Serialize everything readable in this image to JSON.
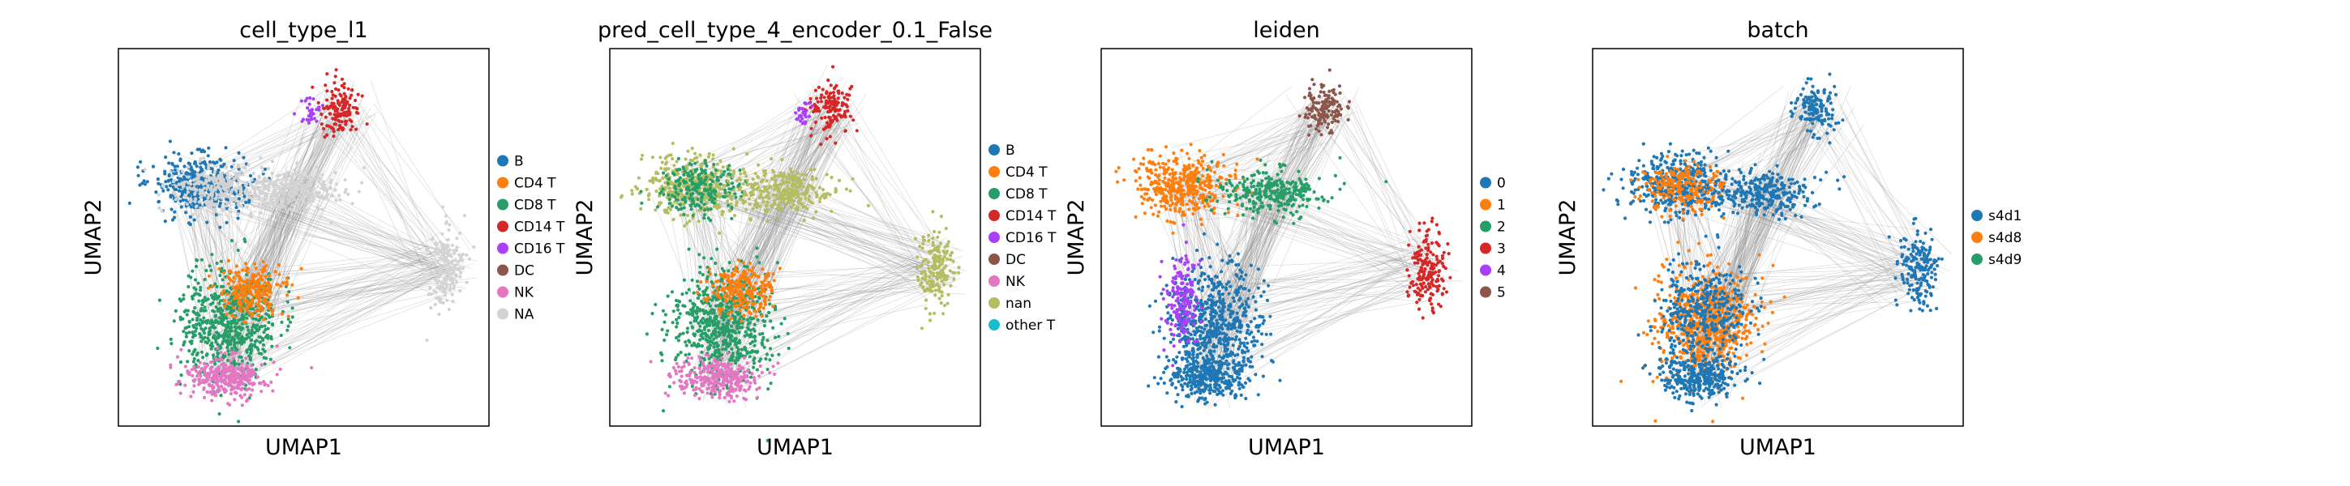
{
  "chart_data": [
    {
      "type": "scatter",
      "title": "cell_type_l1",
      "xlabel": "UMAP1",
      "ylabel": "UMAP2",
      "legend_position": "right",
      "legend": [
        {
          "label": "B",
          "color": "#1f77b4"
        },
        {
          "label": "CD4 T",
          "color": "#ff7f0e"
        },
        {
          "label": "CD8 T",
          "color": "#279e68"
        },
        {
          "label": "CD14 T",
          "color": "#d62728"
        },
        {
          "label": "CD16 T",
          "color": "#aa40fc"
        },
        {
          "label": "DC",
          "color": "#8c564b"
        },
        {
          "label": "NK",
          "color": "#e377c2"
        },
        {
          "label": "NA",
          "color": "#d3d3d3"
        }
      ],
      "regions": {
        "top": "CD14 T",
        "top_accent": "CD16 T",
        "upper_left": "B",
        "upper_left_mix": "NA",
        "middle": "NA",
        "right": "NA",
        "lower": "CD8 T",
        "lower_right": "CD4 T",
        "bottom": "NK"
      }
    },
    {
      "type": "scatter",
      "title": "pred_cell_type_4_encoder_0.1_False",
      "xlabel": "UMAP1",
      "ylabel": "UMAP2",
      "legend_position": "right",
      "legend": [
        {
          "label": "B",
          "color": "#1f77b4"
        },
        {
          "label": "CD4 T",
          "color": "#ff7f0e"
        },
        {
          "label": "CD8 T",
          "color": "#279e68"
        },
        {
          "label": "CD14 T",
          "color": "#d62728"
        },
        {
          "label": "CD16 T",
          "color": "#aa40fc"
        },
        {
          "label": "DC",
          "color": "#8c564b"
        },
        {
          "label": "NK",
          "color": "#e377c2"
        },
        {
          "label": "nan",
          "color": "#b5bd61"
        },
        {
          "label": "other T",
          "color": "#17becf"
        }
      ],
      "regions": {
        "top": "CD14 T",
        "top_accent": "CD16 T",
        "upper_left": "nan",
        "upper_left_mix": "CD8 T",
        "middle": "nan",
        "right": "nan",
        "lower": "CD8 T",
        "lower_right": "CD4 T",
        "bottom": "NK"
      }
    },
    {
      "type": "scatter",
      "title": "leiden",
      "xlabel": "UMAP1",
      "ylabel": "UMAP2",
      "legend_position": "right",
      "legend": [
        {
          "label": "0",
          "color": "#1f77b4"
        },
        {
          "label": "1",
          "color": "#ff7f0e"
        },
        {
          "label": "2",
          "color": "#279e68"
        },
        {
          "label": "3",
          "color": "#d62728"
        },
        {
          "label": "4",
          "color": "#aa40fc"
        },
        {
          "label": "5",
          "color": "#8c564b"
        }
      ],
      "regions": {
        "top": "5",
        "upper_left": "1",
        "middle": "2",
        "right": "3",
        "lower": "0",
        "lower_left": "4",
        "bottom": "0"
      }
    },
    {
      "type": "scatter",
      "title": "batch",
      "xlabel": "UMAP1",
      "ylabel": "UMAP2",
      "legend_position": "right",
      "legend": [
        {
          "label": "s4d1",
          "color": "#1f77b4"
        },
        {
          "label": "s4d8",
          "color": "#ff7f0e"
        },
        {
          "label": "s4d9",
          "color": "#279e68"
        }
      ],
      "regions": {
        "top": "s4d1",
        "upper_left": "s4d1",
        "upper_left_mix": "s4d8",
        "middle": "s4d1",
        "right": "s4d1",
        "lower": "s4d8",
        "lower_mix": "s4d1",
        "bottom": "s4d1"
      }
    }
  ]
}
